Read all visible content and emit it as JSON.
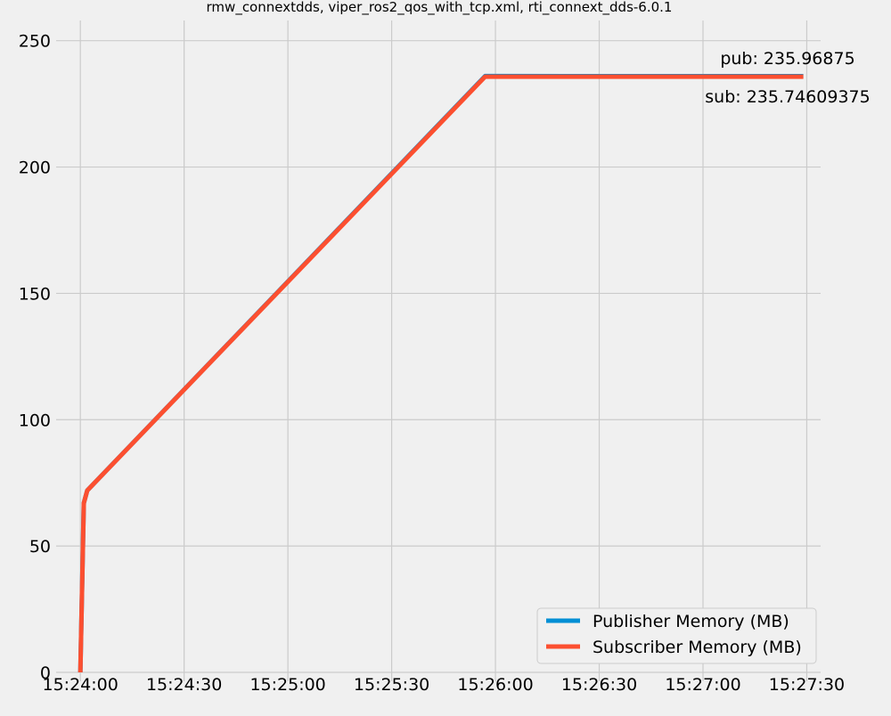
{
  "chart_data": {
    "type": "line",
    "title": "rmw_connextdds, viper_ros2_qos_with_tcp.xml, rti_connext_dds-6.0.1",
    "xlabel": "",
    "ylabel": "",
    "x_tick_labels": [
      "15:24:00",
      "15:24:30",
      "15:25:00",
      "15:25:30",
      "15:26:00",
      "15:26:30",
      "15:27:00",
      "15:27:30"
    ],
    "y_tick_labels": [
      "0",
      "50",
      "100",
      "150",
      "200",
      "250"
    ],
    "xlim": [
      "15:23:53",
      "15:27:34"
    ],
    "ylim": [
      0,
      258
    ],
    "grid": true,
    "legend_position": "lower-right",
    "series": [
      {
        "name": "Publisher Memory (MB)",
        "color": "#008fd5",
        "points": [
          [
            "15:24:00",
            0
          ],
          [
            "15:24:01",
            67
          ],
          [
            "15:24:02",
            72
          ],
          [
            "15:25:57",
            236.0
          ],
          [
            "15:27:29",
            235.96875
          ]
        ]
      },
      {
        "name": "Subscriber Memory (MB)",
        "color": "#fc4f30",
        "points": [
          [
            "15:24:00",
            0
          ],
          [
            "15:24:01",
            67
          ],
          [
            "15:24:02",
            72
          ],
          [
            "15:25:57",
            235.75
          ],
          [
            "15:27:29",
            235.74609375
          ]
        ]
      }
    ],
    "annotations": [
      "pub: 235.96875",
      "sub: 235.74609375"
    ]
  }
}
